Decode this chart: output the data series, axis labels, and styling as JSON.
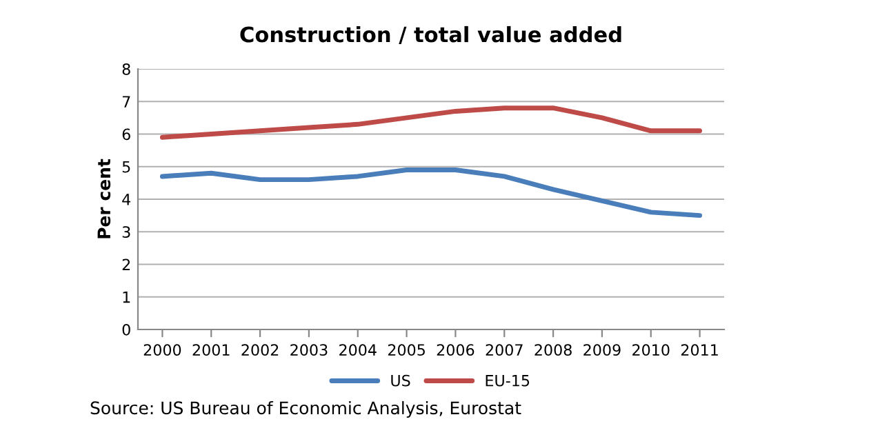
{
  "chart_data": {
    "type": "line",
    "title": "Construction / total value added",
    "ylabel": "Per cent",
    "categories": [
      "2000",
      "2001",
      "2002",
      "2003",
      "2004",
      "2005",
      "2006",
      "2007",
      "2008",
      "2009",
      "2010",
      "2011"
    ],
    "series": [
      {
        "name": "US",
        "color": "#4a7ebb",
        "values": [
          4.7,
          4.8,
          4.6,
          4.6,
          4.7,
          4.9,
          4.9,
          4.7,
          4.3,
          3.95,
          3.6,
          3.5
        ]
      },
      {
        "name": "EU-15",
        "color": "#be4b48",
        "values": [
          5.9,
          6.0,
          6.1,
          6.2,
          6.3,
          6.5,
          6.7,
          6.8,
          6.8,
          6.5,
          6.1,
          6.1
        ]
      }
    ],
    "ylim": [
      0,
      8
    ],
    "yticks": [
      0,
      1,
      2,
      3,
      4,
      5,
      6,
      7,
      8
    ],
    "grid": "y",
    "legend": "bottom",
    "marker": "none",
    "line_style": "solid",
    "annotations": [
      "Source: US Bureau of Economic Analysis, Eurostat"
    ]
  }
}
